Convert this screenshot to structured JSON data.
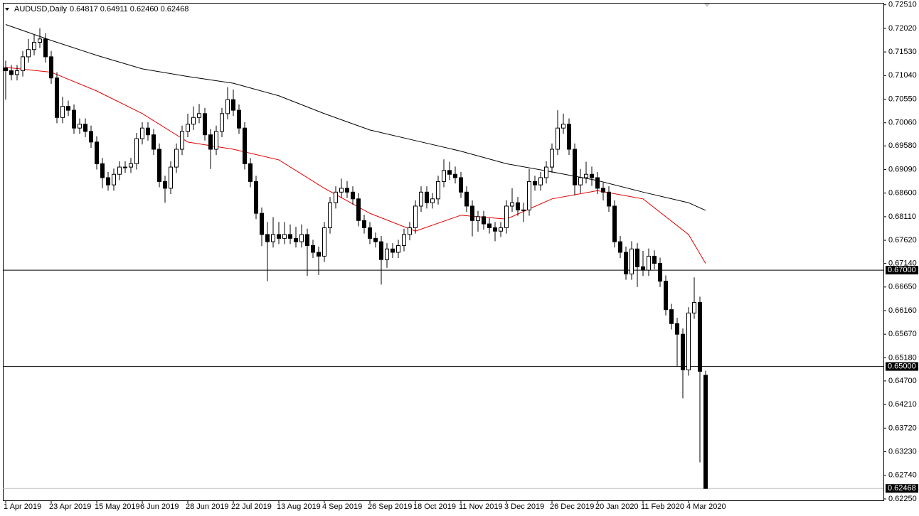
{
  "chart_data": {
    "type": "candlestick",
    "title": "AUDUSD,Daily",
    "quote": "0.64817 0.64911 0.62460 0.62468",
    "up_color": "#ffffff",
    "down_color": "#000000",
    "categories": [
      "1 Apr 2019",
      null,
      null,
      null,
      null,
      null,
      null,
      null,
      "23 Apr 2019",
      null,
      null,
      null,
      null,
      null,
      null,
      null,
      "15 May 2019",
      null,
      null,
      null,
      null,
      null,
      null,
      null,
      "6 Jun 2019",
      null,
      null,
      null,
      null,
      null,
      null,
      null,
      "28 Jun 2019",
      null,
      null,
      null,
      null,
      null,
      null,
      null,
      "22 Jul 2019",
      null,
      null,
      null,
      null,
      null,
      null,
      null,
      "13 Aug 2019",
      null,
      null,
      null,
      null,
      null,
      null,
      null,
      "4 Sep 2019",
      null,
      null,
      null,
      null,
      null,
      null,
      null,
      "26 Sep 2019",
      null,
      null,
      null,
      null,
      null,
      null,
      null,
      "18 Oct 2019",
      null,
      null,
      null,
      null,
      null,
      null,
      null,
      "11 Nov 2019",
      null,
      null,
      null,
      null,
      null,
      null,
      null,
      "3 Dec 2019",
      null,
      null,
      null,
      null,
      null,
      null,
      null,
      "26 Dec 2019",
      null,
      null,
      null,
      null,
      null,
      null,
      null,
      "20 Jan 2020",
      null,
      null,
      null,
      null,
      null,
      null,
      null,
      "11 Feb 2020",
      null,
      null,
      null,
      null,
      null,
      null,
      null,
      "4 Mar 2020",
      null,
      null,
      null
    ],
    "open": [
      0.712,
      0.7114,
      0.7106,
      0.7114,
      0.7143,
      0.7158,
      0.7173,
      0.718,
      0.7143,
      0.7099,
      0.7017,
      0.704,
      0.7032,
      0.6995,
      0.7003,
      0.6988,
      0.6966,
      0.6921,
      0.6892,
      0.6877,
      0.6899,
      0.6914,
      0.6914,
      0.6921,
      0.6973,
      0.6995,
      0.6981,
      0.6951,
      0.6884,
      0.687,
      0.6914,
      0.6951,
      0.6988,
      0.7003,
      0.7017,
      0.7025,
      0.6981,
      0.6951,
      0.6988,
      0.7025,
      0.7054,
      0.7032,
      0.6995,
      0.6921,
      0.6884,
      0.6818,
      0.6774,
      0.6759,
      0.6774,
      0.6766,
      0.6774,
      0.6766,
      0.6759,
      0.6774,
      0.6751,
      0.6737,
      0.6729,
      0.6788,
      0.684,
      0.6862,
      0.687,
      0.6862,
      0.6848,
      0.6803,
      0.6788,
      0.6766,
      0.6759,
      0.6722,
      0.6744,
      0.6737,
      0.6751,
      0.6774,
      0.6788,
      0.6833,
      0.6862,
      0.684,
      0.6848,
      0.6884,
      0.6907,
      0.6899,
      0.6892,
      0.6862,
      0.6833,
      0.6803,
      0.6811,
      0.6796,
      0.6788,
      0.6781,
      0.6788,
      0.6833,
      0.684,
      0.6825,
      0.6825,
      0.6884,
      0.6877,
      0.6892,
      0.6914,
      0.6951,
      0.6995,
      0.7003,
      0.6951,
      0.6877,
      0.6892,
      0.6899,
      0.6892,
      0.687,
      0.6862,
      0.6833,
      0.6759,
      0.6737,
      0.6692,
      0.6744,
      0.6707,
      0.67,
      0.6729,
      0.6714,
      0.6677,
      0.6618,
      0.6589,
      0.6567,
      0.6493,
      0.6611,
      0.6633,
      0.64817
    ],
    "high": [
      0.7135,
      0.7126,
      0.7126,
      0.7155,
      0.718,
      0.719,
      0.7202,
      0.7192,
      0.7155,
      0.7111,
      0.706,
      0.7052,
      0.7044,
      0.7015,
      0.7015,
      0.7,
      0.6978,
      0.6933,
      0.6904,
      0.6911,
      0.6926,
      0.6926,
      0.6933,
      0.6985,
      0.7007,
      0.7007,
      0.6993,
      0.6963,
      0.6896,
      0.6926,
      0.6963,
      0.7,
      0.7025,
      0.704,
      0.7045,
      0.7037,
      0.6993,
      0.7,
      0.7037,
      0.708,
      0.7075,
      0.7044,
      0.7007,
      0.6933,
      0.6896,
      0.683,
      0.68,
      0.681,
      0.68,
      0.68,
      0.6795,
      0.679,
      0.6795,
      0.6786,
      0.6763,
      0.6749,
      0.68,
      0.6852,
      0.6874,
      0.689,
      0.6885,
      0.6874,
      0.686,
      0.6815,
      0.68,
      0.6778,
      0.6771,
      0.6756,
      0.6756,
      0.6763,
      0.6786,
      0.68,
      0.6845,
      0.6874,
      0.6874,
      0.686,
      0.6896,
      0.693,
      0.6925,
      0.6915,
      0.6904,
      0.6874,
      0.6845,
      0.6823,
      0.6823,
      0.6808,
      0.68,
      0.68,
      0.6845,
      0.687,
      0.6852,
      0.684,
      0.691,
      0.6896,
      0.6904,
      0.6926,
      0.6963,
      0.7032,
      0.7025,
      0.7015,
      0.6963,
      0.691,
      0.6925,
      0.6915,
      0.6904,
      0.6882,
      0.6874,
      0.6845,
      0.6771,
      0.6749,
      0.676,
      0.6756,
      0.674,
      0.6745,
      0.6741,
      0.6726,
      0.6689,
      0.663,
      0.6601,
      0.6579,
      0.6623,
      0.6685,
      0.6645,
      0.64911
    ],
    "low": [
      0.7054,
      0.7094,
      0.7094,
      0.7102,
      0.7131,
      0.7146,
      0.7161,
      0.7131,
      0.7087,
      0.7005,
      0.7005,
      0.702,
      0.6983,
      0.6983,
      0.6976,
      0.6954,
      0.6909,
      0.687,
      0.6865,
      0.6865,
      0.6887,
      0.6902,
      0.6902,
      0.6909,
      0.6961,
      0.6969,
      0.6939,
      0.6872,
      0.684,
      0.6858,
      0.6902,
      0.6939,
      0.6976,
      0.6991,
      0.7005,
      0.6969,
      0.691,
      0.6939,
      0.6976,
      0.7013,
      0.702,
      0.6983,
      0.6909,
      0.6872,
      0.6806,
      0.675,
      0.6677,
      0.6747,
      0.6754,
      0.6754,
      0.6754,
      0.6747,
      0.6747,
      0.6688,
      0.6725,
      0.669,
      0.6717,
      0.6776,
      0.6828,
      0.685,
      0.685,
      0.6836,
      0.6791,
      0.6776,
      0.6754,
      0.6747,
      0.667,
      0.6705,
      0.6725,
      0.6725,
      0.6739,
      0.6762,
      0.6776,
      0.6821,
      0.6828,
      0.6828,
      0.6836,
      0.6872,
      0.6887,
      0.688,
      0.685,
      0.6821,
      0.677,
      0.678,
      0.6784,
      0.6776,
      0.676,
      0.6769,
      0.6776,
      0.6821,
      0.6813,
      0.68,
      0.6813,
      0.6865,
      0.6865,
      0.688,
      0.6902,
      0.6939,
      0.6983,
      0.6939,
      0.6855,
      0.686,
      0.688,
      0.6875,
      0.6858,
      0.6845,
      0.6821,
      0.6747,
      0.6725,
      0.668,
      0.668,
      0.6665,
      0.6688,
      0.6688,
      0.6702,
      0.6665,
      0.6606,
      0.6577,
      0.65,
      0.6434,
      0.6481,
      0.6599,
      0.6301,
      0.6246
    ],
    "close": [
      0.7114,
      0.7106,
      0.7114,
      0.7143,
      0.7158,
      0.7173,
      0.718,
      0.7143,
      0.7099,
      0.7017,
      0.704,
      0.7032,
      0.6995,
      0.7003,
      0.6988,
      0.6966,
      0.6921,
      0.6892,
      0.6877,
      0.6899,
      0.6914,
      0.6914,
      0.6921,
      0.6973,
      0.6995,
      0.6981,
      0.6951,
      0.6884,
      0.687,
      0.6914,
      0.6951,
      0.6988,
      0.7003,
      0.7017,
      0.7025,
      0.6981,
      0.6951,
      0.6988,
      0.7025,
      0.7054,
      0.7032,
      0.6995,
      0.6921,
      0.6884,
      0.6818,
      0.6774,
      0.6759,
      0.6774,
      0.6766,
      0.6774,
      0.6766,
      0.6759,
      0.6774,
      0.6751,
      0.6737,
      0.6729,
      0.6788,
      0.684,
      0.6862,
      0.687,
      0.6862,
      0.6848,
      0.6803,
      0.6788,
      0.6766,
      0.6759,
      0.6722,
      0.6744,
      0.6737,
      0.6751,
      0.6774,
      0.6788,
      0.6833,
      0.6862,
      0.684,
      0.6848,
      0.6884,
      0.6907,
      0.6899,
      0.6892,
      0.6862,
      0.6833,
      0.6803,
      0.6811,
      0.6796,
      0.6788,
      0.6781,
      0.6788,
      0.6833,
      0.684,
      0.6825,
      0.6825,
      0.6884,
      0.6877,
      0.6892,
      0.6914,
      0.6951,
      0.6995,
      0.7003,
      0.6951,
      0.6877,
      0.6892,
      0.6899,
      0.6892,
      0.687,
      0.6862,
      0.6833,
      0.6759,
      0.6737,
      0.6692,
      0.6744,
      0.6707,
      0.67,
      0.6729,
      0.6714,
      0.6677,
      0.6618,
      0.6589,
      0.6567,
      0.6493,
      0.6611,
      0.6633,
      0.649,
      0.62468
    ],
    "moving_averages": [
      {
        "color": "#000000",
        "x": [
          0,
          8,
          16,
          24,
          32,
          40,
          48,
          56,
          64,
          72,
          80,
          88,
          96,
          104,
          112,
          120,
          123
        ],
        "values": [
          0.721,
          0.7177,
          0.7146,
          0.7118,
          0.7102,
          0.7088,
          0.7062,
          0.7025,
          0.6991,
          0.6969,
          0.6947,
          0.6921,
          0.6904,
          0.6886,
          0.6862,
          0.684,
          0.6824
        ]
      },
      {
        "color": "#e00000",
        "x": [
          0,
          8,
          16,
          24,
          32,
          40,
          48,
          56,
          64,
          72,
          80,
          88,
          96,
          104,
          112,
          120,
          123
        ],
        "values": [
          0.7121,
          0.7111,
          0.7072,
          0.7025,
          0.6966,
          0.6951,
          0.6929,
          0.687,
          0.6818,
          0.6781,
          0.6814,
          0.6806,
          0.6848,
          0.6865,
          0.6848,
          0.6774,
          0.6714
        ]
      }
    ],
    "levels": [
      {
        "value": 0.67,
        "label": "0.67000"
      },
      {
        "value": 0.65,
        "label": "0.65000"
      }
    ],
    "last_price": {
      "value": 0.62468,
      "label": "0.62468"
    },
    "ylim": [
      0.6222,
      0.7255
    ],
    "yticks": [
      {
        "value": 0.7251,
        "label": "0.72510"
      },
      {
        "value": 0.7202,
        "label": "0.72020"
      },
      {
        "value": 0.7153,
        "label": "0.71530"
      },
      {
        "value": 0.7104,
        "label": "0.71040"
      },
      {
        "value": 0.7055,
        "label": "0.70550"
      },
      {
        "value": 0.7006,
        "label": "0.70060"
      },
      {
        "value": 0.6958,
        "label": "0.69580"
      },
      {
        "value": 0.6909,
        "label": "0.69090"
      },
      {
        "value": 0.686,
        "label": "0.68600"
      },
      {
        "value": 0.6811,
        "label": "0.68110"
      },
      {
        "value": 0.6762,
        "label": "0.67620"
      },
      {
        "value": 0.6714,
        "label": "0.67140"
      },
      {
        "value": 0.6665,
        "label": "0.66650"
      },
      {
        "value": 0.6616,
        "label": "0.66160"
      },
      {
        "value": 0.6567,
        "label": "0.65670"
      },
      {
        "value": 0.6518,
        "label": "0.65180"
      },
      {
        "value": 0.647,
        "label": "0.64700"
      },
      {
        "value": 0.6421,
        "label": "0.64210"
      },
      {
        "value": 0.6372,
        "label": "0.63720"
      },
      {
        "value": 0.6323,
        "label": "0.63230"
      },
      {
        "value": 0.6274,
        "label": "0.62740"
      },
      {
        "value": 0.6225,
        "label": "0.62250"
      }
    ]
  }
}
